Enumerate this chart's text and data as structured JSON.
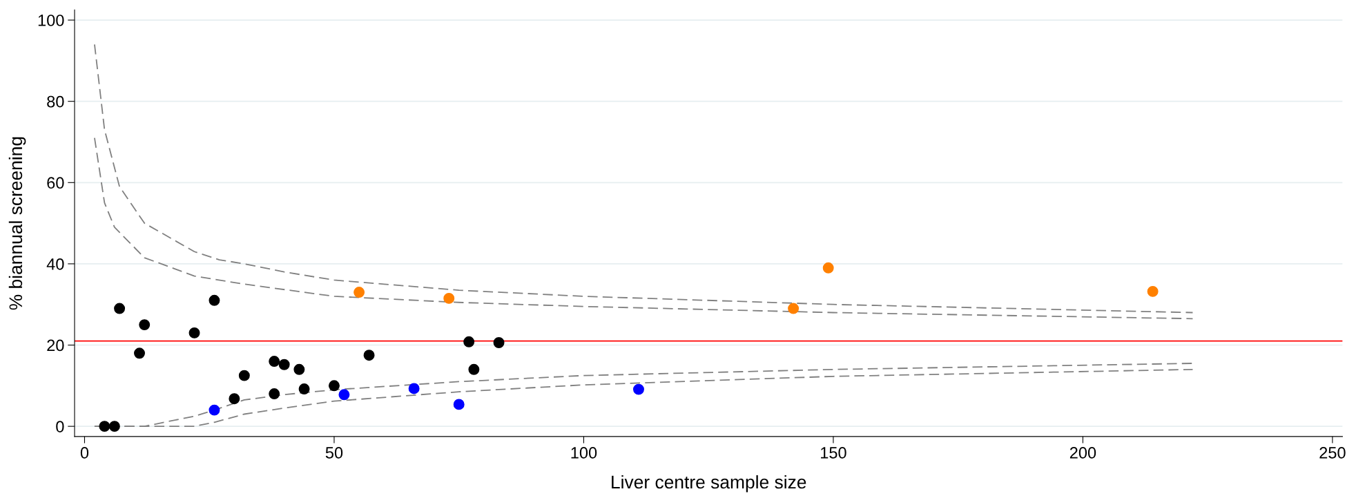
{
  "chart_data": {
    "type": "scatter",
    "xlabel": "Liver centre sample size",
    "ylabel": "% biannual screening",
    "xlim": [
      -2,
      252
    ],
    "ylim": [
      -2.5,
      102.5
    ],
    "xticks": [
      0,
      50,
      100,
      150,
      200,
      250
    ],
    "yticks": [
      0,
      20,
      40,
      60,
      80,
      100
    ],
    "grid": "y",
    "series": [
      {
        "type": "line",
        "color": "#808080",
        "line_style": "dashed",
        "marker": "none",
        "x": [
          2,
          4,
          7,
          12,
          22,
          27,
          32,
          40,
          50,
          60,
          75,
          100,
          150,
          222
        ],
        "values": [
          94,
          73,
          59,
          50,
          43,
          41,
          40,
          38,
          36,
          35,
          33.5,
          32,
          30,
          28
        ]
      },
      {
        "type": "line",
        "color": "#808080",
        "line_style": "dashed",
        "marker": "none",
        "x": [
          2,
          4,
          6,
          12,
          22,
          32,
          50,
          75,
          100,
          150,
          222
        ],
        "values": [
          71,
          55,
          49,
          41.5,
          37,
          35,
          32,
          30.5,
          29.5,
          28,
          26.5
        ]
      },
      {
        "type": "line",
        "color": "#808080",
        "line_style": "dashed",
        "marker": "none",
        "x": [
          2,
          12,
          22,
          26,
          32,
          40,
          50,
          75,
          100,
          150,
          222
        ],
        "values": [
          0,
          0,
          2.5,
          4,
          6.5,
          7.8,
          9,
          11,
          12.5,
          14,
          15.5
        ]
      },
      {
        "type": "line",
        "color": "#808080",
        "line_style": "dashed",
        "marker": "none",
        "x": [
          2,
          22,
          26,
          32,
          40,
          50,
          75,
          100,
          150,
          222
        ],
        "values": [
          0,
          0,
          1,
          3,
          4.5,
          6.2,
          8.5,
          10.2,
          12.3,
          14
        ]
      },
      {
        "color": "#000000",
        "marker": "circle",
        "x": [
          4,
          6,
          7,
          11,
          12,
          22,
          26,
          30,
          32,
          38,
          38,
          40,
          43,
          44,
          50,
          57,
          77,
          78,
          83
        ],
        "values": [
          0,
          0,
          29,
          18,
          25,
          23,
          31,
          6.8,
          12.5,
          16,
          8,
          15.2,
          14,
          9.2,
          10,
          17.5,
          20.8,
          14,
          20.6
        ]
      },
      {
        "color": "#0000ff",
        "marker": "circle",
        "x": [
          26,
          52,
          66,
          75,
          111
        ],
        "values": [
          4,
          7.8,
          9.3,
          5.4,
          9.1
        ]
      },
      {
        "color": "#ff8000",
        "marker": "circle",
        "x": [
          55,
          73,
          142,
          149,
          214
        ],
        "values": [
          33,
          31.5,
          29,
          39,
          33.2
        ]
      }
    ],
    "ref_lines": [
      {
        "axis": "y",
        "value": 21,
        "color": "#ff0000"
      }
    ]
  }
}
